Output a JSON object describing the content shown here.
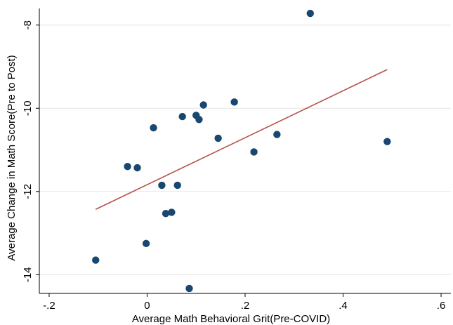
{
  "chart_data": {
    "type": "scatter",
    "xlabel": "Average Math Behavioral Grit(Pre-COVID)",
    "ylabel": "Average Change in Math Score(Pre to Post)",
    "xlim": [
      -0.22,
      0.62
    ],
    "ylim": [
      -14.45,
      -7.6
    ],
    "x_ticks": [
      {
        "value": -0.2,
        "label": "-.2"
      },
      {
        "value": 0,
        "label": "0"
      },
      {
        "value": 0.2,
        "label": ".2"
      },
      {
        "value": 0.4,
        "label": ".4"
      },
      {
        "value": 0.6,
        "label": ".6"
      }
    ],
    "y_ticks": [
      {
        "value": -8,
        "label": "-8"
      },
      {
        "value": -10,
        "label": "-10"
      },
      {
        "value": -12,
        "label": "-12"
      },
      {
        "value": -14,
        "label": "-14"
      }
    ],
    "grid": "horizontal",
    "points": [
      {
        "x": -0.105,
        "y": -13.65
      },
      {
        "x": -0.04,
        "y": -11.4
      },
      {
        "x": -0.02,
        "y": -11.43
      },
      {
        "x": -0.002,
        "y": -13.25
      },
      {
        "x": 0.013,
        "y": -10.47
      },
      {
        "x": 0.03,
        "y": -11.85
      },
      {
        "x": 0.038,
        "y": -12.53
      },
      {
        "x": 0.05,
        "y": -12.5
      },
      {
        "x": 0.062,
        "y": -11.85
      },
      {
        "x": 0.072,
        "y": -10.2
      },
      {
        "x": 0.086,
        "y": -14.33
      },
      {
        "x": 0.1,
        "y": -10.17
      },
      {
        "x": 0.106,
        "y": -10.27
      },
      {
        "x": 0.115,
        "y": -9.92
      },
      {
        "x": 0.145,
        "y": -10.72
      },
      {
        "x": 0.178,
        "y": -9.85
      },
      {
        "x": 0.218,
        "y": -11.05
      },
      {
        "x": 0.265,
        "y": -10.63
      },
      {
        "x": 0.333,
        "y": -7.72
      },
      {
        "x": 0.49,
        "y": -10.8
      }
    ],
    "fit_line": {
      "x": [
        -0.105,
        0.49
      ],
      "y": [
        -12.43,
        -9.07
      ]
    },
    "point_color": "#1a476f",
    "line_color": "#b5524b",
    "grid_color": "#e6e6e6"
  }
}
